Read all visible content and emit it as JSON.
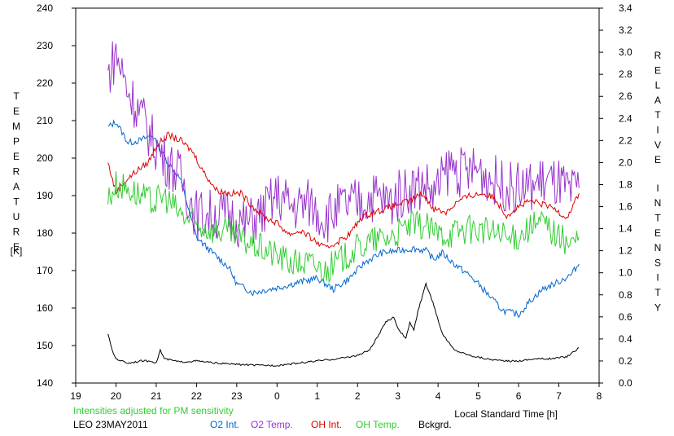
{
  "chart_data": {
    "type": "line",
    "title": "",
    "xlabel": "Local Standard Time [h]",
    "ylabel_left": "TEMPERATURE",
    "ylabel_left_unit": "[K]",
    "ylabel_right": "RELATIVE INTENSITY",
    "xlim": [
      19,
      32
    ],
    "ylim_left": [
      140,
      240
    ],
    "ylim_right": [
      0.0,
      3.4
    ],
    "x_tick_values": [
      19,
      20,
      21,
      22,
      23,
      24,
      25,
      26,
      27,
      28,
      29,
      30,
      31,
      32
    ],
    "x_tick_labels": [
      "19",
      "20",
      "21",
      "22",
      "23",
      "0",
      "1",
      "2",
      "3",
      "4",
      "5",
      "6",
      "7",
      "8"
    ],
    "y_left_ticks": [
      "140",
      "150",
      "160",
      "170",
      "180",
      "190",
      "200",
      "210",
      "220",
      "230",
      "240"
    ],
    "y_right_ticks": [
      "0.0",
      "0.2",
      "0.4",
      "0.6",
      "0.8",
      "1.0",
      "1.2",
      "1.4",
      "1.6",
      "1.8",
      "2.0",
      "2.2",
      "2.4",
      "2.6",
      "2.8",
      "3.0",
      "3.2",
      "3.4"
    ],
    "note": "Intensities adjusted for PM sensitivity",
    "site": "LEO 23MAY2011",
    "legend_position": "bottom",
    "grid": false,
    "series": [
      {
        "name": "O2 Int.",
        "axis": "right",
        "color": "#0066cc",
        "noise": 0.03,
        "x": [
          19.8,
          20.0,
          20.3,
          20.6,
          20.9,
          21.2,
          21.6,
          22.0,
          22.4,
          22.8,
          23.0,
          23.4,
          23.8,
          24.2,
          24.6,
          25.0,
          25.4,
          25.8,
          26.2,
          26.6,
          27.0,
          27.4,
          27.7,
          27.9,
          28.1,
          28.4,
          28.7,
          29.0,
          29.3,
          29.6,
          30.0,
          30.3,
          30.6,
          31.0,
          31.3,
          31.5
        ],
        "y": [
          2.32,
          2.37,
          2.18,
          2.2,
          2.25,
          2.05,
          1.85,
          1.32,
          1.18,
          1.05,
          0.9,
          0.82,
          0.85,
          0.88,
          0.92,
          0.95,
          0.85,
          0.95,
          1.1,
          1.18,
          1.2,
          1.22,
          1.2,
          1.12,
          1.18,
          1.08,
          1.0,
          0.9,
          0.78,
          0.66,
          0.62,
          0.75,
          0.85,
          0.92,
          0.98,
          1.08
        ]
      },
      {
        "name": "O2 Temp.",
        "axis": "left",
        "color": "#9933cc",
        "noise": 7,
        "x": [
          19.8,
          20.0,
          20.3,
          20.6,
          20.9,
          21.2,
          21.6,
          22.0,
          22.4,
          22.8,
          23.2,
          23.6,
          24.0,
          24.4,
          24.8,
          25.2,
          25.6,
          26.0,
          26.4,
          26.8,
          27.0,
          27.3,
          27.7,
          27.9,
          28.3,
          28.6,
          29.0,
          29.4,
          29.8,
          30.2,
          30.6,
          31.0,
          31.3,
          31.5
        ],
        "y": [
          222,
          228,
          218,
          212,
          205,
          200,
          195,
          185,
          185,
          185,
          182,
          185,
          190,
          187,
          188,
          184,
          187,
          188,
          190,
          188,
          190,
          192,
          193,
          190,
          198,
          196,
          197,
          194,
          192,
          192,
          194,
          193,
          190,
          192
        ]
      },
      {
        "name": "OH Int.",
        "axis": "right",
        "color": "#dd0000",
        "noise": 0.03,
        "x": [
          19.8,
          20.0,
          20.2,
          20.5,
          20.8,
          21.0,
          21.3,
          21.6,
          21.9,
          22.2,
          22.5,
          22.8,
          23.1,
          23.4,
          23.7,
          24.0,
          24.3,
          24.6,
          24.9,
          25.2,
          25.5,
          25.8,
          26.1,
          26.4,
          26.7,
          27.0,
          27.3,
          27.6,
          27.9,
          28.2,
          28.5,
          28.8,
          29.1,
          29.4,
          29.7,
          30.0,
          30.3,
          30.6,
          30.9,
          31.2,
          31.5
        ],
        "y": [
          2.0,
          1.73,
          1.82,
          1.92,
          2.0,
          2.15,
          2.25,
          2.2,
          2.1,
          1.9,
          1.75,
          1.72,
          1.72,
          1.6,
          1.5,
          1.45,
          1.35,
          1.38,
          1.3,
          1.22,
          1.28,
          1.35,
          1.5,
          1.55,
          1.58,
          1.62,
          1.65,
          1.72,
          1.58,
          1.55,
          1.65,
          1.7,
          1.72,
          1.68,
          1.52,
          1.6,
          1.65,
          1.62,
          1.58,
          1.5,
          1.72
        ]
      },
      {
        "name": "OH Temp.",
        "axis": "left",
        "color": "#33cc33",
        "noise": 4,
        "x": [
          19.8,
          20.0,
          20.3,
          20.6,
          20.9,
          21.2,
          21.6,
          22.0,
          22.4,
          22.8,
          23.2,
          23.6,
          24.0,
          24.4,
          24.8,
          25.2,
          25.6,
          26.0,
          26.4,
          26.8,
          27.0,
          27.3,
          27.7,
          27.9,
          28.3,
          28.6,
          29.0,
          29.4,
          29.8,
          30.2,
          30.6,
          31.0,
          31.3,
          31.5
        ],
        "y": [
          189,
          193,
          192,
          190,
          188,
          190,
          185,
          182,
          181,
          180,
          178,
          176,
          174,
          172,
          172,
          170,
          173,
          176,
          178,
          179,
          180,
          182,
          182,
          180,
          180,
          181,
          181,
          180,
          178,
          181,
          183,
          179,
          177,
          179
        ]
      },
      {
        "name": "Bckgrd.",
        "axis": "right",
        "color": "#000000",
        "noise": 0.008,
        "x": [
          19.8,
          19.9,
          20.0,
          20.3,
          20.6,
          20.9,
          21.0,
          21.1,
          21.2,
          21.6,
          22.0,
          22.5,
          23.0,
          23.5,
          24.0,
          24.5,
          25.0,
          25.5,
          26.0,
          26.3,
          26.5,
          26.7,
          26.9,
          27.0,
          27.2,
          27.3,
          27.4,
          27.5,
          27.7,
          27.9,
          28.1,
          28.4,
          28.8,
          29.2,
          29.6,
          30.0,
          30.4,
          30.8,
          31.2,
          31.5
        ],
        "y": [
          0.45,
          0.3,
          0.22,
          0.18,
          0.2,
          0.2,
          0.18,
          0.3,
          0.22,
          0.19,
          0.2,
          0.18,
          0.17,
          0.16,
          0.16,
          0.18,
          0.2,
          0.22,
          0.25,
          0.3,
          0.42,
          0.55,
          0.6,
          0.5,
          0.4,
          0.55,
          0.48,
          0.65,
          0.9,
          0.7,
          0.45,
          0.3,
          0.25,
          0.22,
          0.2,
          0.2,
          0.22,
          0.22,
          0.24,
          0.32
        ]
      }
    ]
  }
}
